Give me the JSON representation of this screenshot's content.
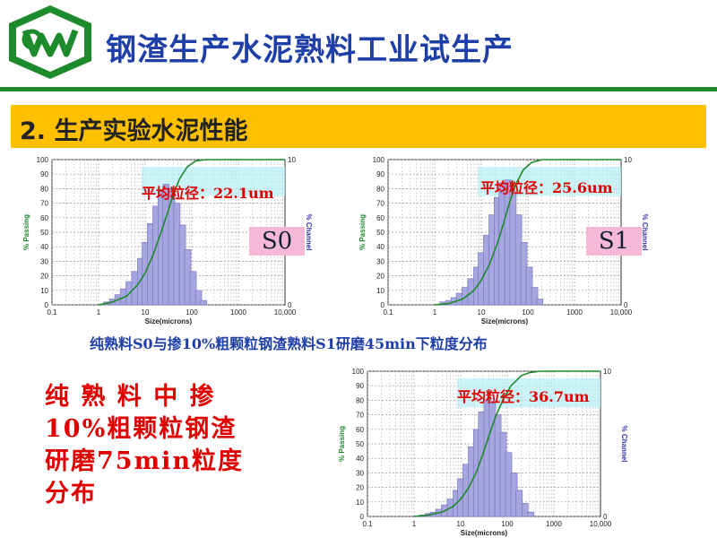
{
  "header": {
    "title": "钢渣生产水泥熟料工业试生产",
    "colors": {
      "title": "#1f3fa8",
      "rule": "#1d8a2b",
      "logo": "#1d8a2b"
    }
  },
  "section": {
    "title": "2. 生产实验水泥性能",
    "color": "#ffc000"
  },
  "caption": "纯熟料S0与掺10%粗颗粒钢渣熟料S1研磨45min下粒度分布",
  "side_text": "纯 熟 料 中 掺 10%粗颗粒钢渣研磨75min粒度分布",
  "chart_data": [
    {
      "type": "bar",
      "sample": "S0",
      "avg_label": "平均粒径：22.1um",
      "xlabel": "Size(microns)",
      "ylabel_left": "% Passing",
      "ylabel_right": "% Channel",
      "xscale": "log",
      "xlim": [
        0.1,
        10000
      ],
      "ylim_left": [
        0,
        100
      ],
      "ylim_right": [
        0,
        10
      ],
      "x_ticks": [
        "0.1",
        "1",
        "10",
        "100",
        "1000",
        "10,000"
      ],
      "y_ticks_left": [
        "0",
        "10",
        "20",
        "30",
        "40",
        "50",
        "60",
        "70",
        "80",
        "90",
        "100"
      ],
      "y_ticks_right": [
        "0",
        "10"
      ],
      "grid": true,
      "series": [
        {
          "kind": "channel",
          "x": [
            1.5,
            2,
            2.6,
            3.4,
            4.5,
            6,
            8,
            10,
            13,
            17,
            22,
            28,
            37,
            48,
            63,
            82,
            107,
            140,
            180
          ],
          "values": [
            0.2,
            0.4,
            0.7,
            1.1,
            1.6,
            2.3,
            3.2,
            4.3,
            5.6,
            6.8,
            7.8,
            8.3,
            8.0,
            7.0,
            5.5,
            3.8,
            2.3,
            1.0,
            0.3
          ]
        },
        {
          "kind": "passing",
          "x": [
            1,
            2,
            4,
            7,
            10,
            15,
            22,
            30,
            40,
            55,
            80,
            120,
            200,
            300
          ],
          "values": [
            0,
            2,
            6,
            14,
            22,
            35,
            50,
            63,
            76,
            87,
            95,
            99,
            100,
            100
          ]
        }
      ]
    },
    {
      "type": "bar",
      "sample": "S1",
      "avg_label": "平均粒径：25.6um",
      "xlabel": "Size(microns)",
      "ylabel_left": "% Passing",
      "ylabel_right": "% Channel",
      "xscale": "log",
      "xlim": [
        0.1,
        10000
      ],
      "ylim_left": [
        0,
        100
      ],
      "ylim_right": [
        0,
        10
      ],
      "x_ticks": [
        "0.1",
        "1",
        "10",
        "100",
        "1000",
        "10,000"
      ],
      "y_ticks_left": [
        "0",
        "10",
        "20",
        "30",
        "40",
        "50",
        "60",
        "70",
        "80",
        "90",
        "100"
      ],
      "y_ticks_right": [
        "0",
        "10"
      ],
      "grid": true,
      "series": [
        {
          "kind": "channel",
          "x": [
            1.5,
            2,
            2.6,
            3.4,
            4.5,
            6,
            8,
            10,
            13,
            17,
            22,
            28,
            37,
            48,
            63,
            82,
            107,
            140,
            180
          ],
          "values": [
            0.2,
            0.3,
            0.5,
            0.8,
            1.2,
            1.8,
            2.6,
            3.6,
            4.8,
            6.2,
            7.4,
            8.4,
            8.6,
            7.8,
            6.2,
            4.3,
            2.6,
            1.2,
            0.4
          ]
        },
        {
          "kind": "passing",
          "x": [
            1,
            2,
            4,
            7,
            10,
            15,
            22,
            30,
            40,
            55,
            80,
            120,
            200,
            300
          ],
          "values": [
            0,
            1,
            4,
            10,
            17,
            28,
            42,
            56,
            70,
            83,
            93,
            98,
            100,
            100
          ]
        }
      ]
    },
    {
      "type": "bar",
      "avg_label": "平均粒径：36.7um",
      "xlabel": "Size(microns)",
      "ylabel_left": "% Passing",
      "ylabel_right": "% Channel",
      "xscale": "log",
      "xlim": [
        0.1,
        10000
      ],
      "ylim_left": [
        0,
        100
      ],
      "ylim_right": [
        0,
        10
      ],
      "x_ticks": [
        "0.1",
        "1",
        "10",
        "100",
        "1000",
        "10,000"
      ],
      "y_ticks_left": [
        "0",
        "10",
        "20",
        "30",
        "40",
        "50",
        "60",
        "70",
        "80",
        "90",
        "100"
      ],
      "y_ticks_right": [
        "0",
        "10"
      ],
      "grid": true,
      "series": [
        {
          "kind": "channel",
          "x": [
            1.5,
            2,
            2.6,
            3.4,
            4.5,
            6,
            8,
            10,
            13,
            17,
            22,
            28,
            37,
            48,
            63,
            82,
            107,
            140,
            180,
            240,
            320
          ],
          "values": [
            0.1,
            0.2,
            0.3,
            0.5,
            0.8,
            1.2,
            1.8,
            2.6,
            3.6,
            4.8,
            6.0,
            7.2,
            8.0,
            7.8,
            7.0,
            5.8,
            4.4,
            3.0,
            1.8,
            0.9,
            0.3
          ]
        },
        {
          "kind": "passing",
          "x": [
            1,
            2,
            4,
            7,
            10,
            15,
            22,
            30,
            40,
            55,
            80,
            120,
            200,
            300,
            500
          ],
          "values": [
            0,
            1,
            3,
            7,
            12,
            20,
            31,
            43,
            55,
            68,
            80,
            90,
            97,
            99,
            100
          ]
        }
      ]
    }
  ]
}
